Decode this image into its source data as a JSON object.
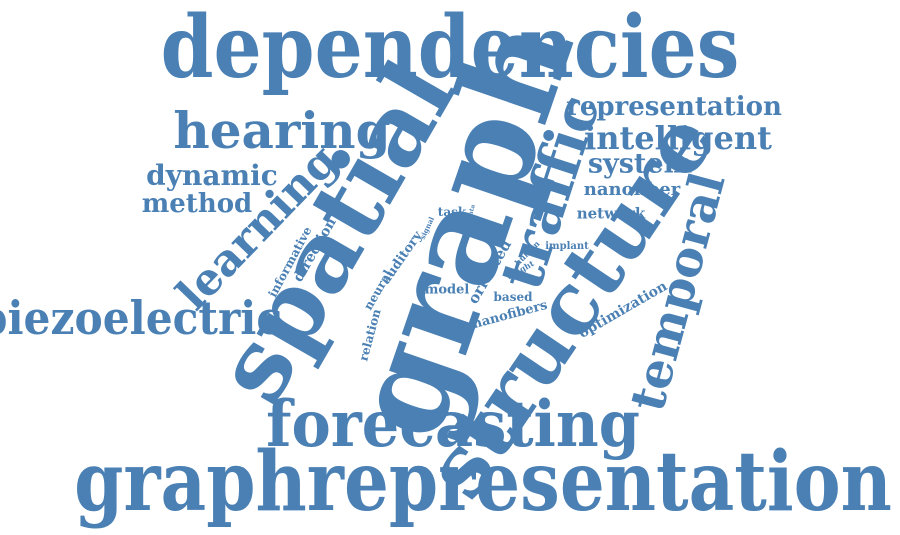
{
  "color": "#4a80b4",
  "words": {
    "dependencies": "dependencies",
    "graphrepresentation": "graphrepresentation",
    "graph": "graph",
    "spatial": "spatial",
    "structure": "structure",
    "forecasting": "forecasting",
    "temporal": "temporal",
    "traffic": "traffic",
    "hearing": "hearing",
    "learning": "learning",
    "piezoelectric": "piezoelectric",
    "representation": "representation",
    "intelligent": "intelligent",
    "system": "system",
    "dynamic": "dynamic",
    "method": "method",
    "nanofiber": "nanofiber",
    "network": "network",
    "optimization": "optimization",
    "nanofibers": "nanofibers",
    "based": "based",
    "oriented": "oriented",
    "model": "model",
    "neural": "neural",
    "relation": "relation",
    "auditory": "auditory",
    "direction": "direction",
    "informative": "informative",
    "task": "task",
    "signal": "signal",
    "data": "data",
    "human": "human",
    "implant": "implant",
    "weight": "weight"
  }
}
